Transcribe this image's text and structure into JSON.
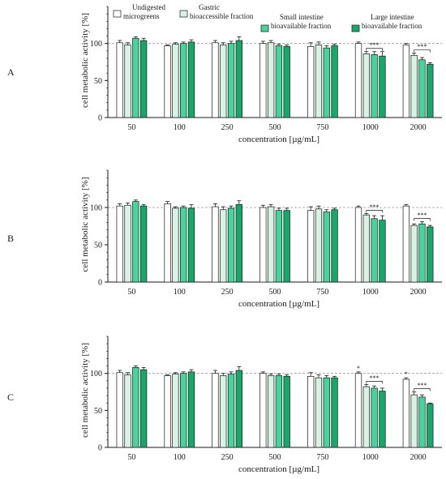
{
  "legend": [
    {
      "lines": [
        "Undigested",
        "microgreens"
      ],
      "color": "#ffffff"
    },
    {
      "lines": [
        "Gastric",
        "bioaccessible fraction"
      ],
      "color": "#d9f2e6"
    },
    {
      "lines": [
        "Small intestine",
        "bioavailable fraction"
      ],
      "color": "#45d49c"
    },
    {
      "lines": [
        "Large intestine",
        "bioavailable fraction"
      ],
      "color": "#16a76b"
    }
  ],
  "colors": {
    "undigested": "#ffffff",
    "gastric": "#d9f2e6",
    "small_intestine": "#45d49c",
    "large_intestine": "#16a76b",
    "axis": "#1a1a1a",
    "reference_line": "#9a9a9a"
  },
  "chart_data": [
    {
      "type": "bar",
      "panel": "A",
      "categories": [
        "50",
        "100",
        "250",
        "500",
        "750",
        "1000",
        "2000"
      ],
      "xlabel": "concentration [µg/mL]",
      "ylabel": "cell metabolic activity [%]",
      "ylim": [
        0,
        150
      ],
      "yticks": [
        0,
        50,
        100
      ],
      "reference_line": 100,
      "series": [
        {
          "name": "Undigested microgreens",
          "values": [
            101,
            97,
            101,
            100,
            96,
            100,
            98
          ],
          "errors": [
            3,
            1,
            3,
            3,
            5,
            2,
            2
          ]
        },
        {
          "name": "Gastric bioaccessible fraction",
          "values": [
            98,
            99,
            98,
            101,
            98,
            86,
            84
          ],
          "errors": [
            3,
            2,
            3,
            3,
            4,
            3,
            3
          ]
        },
        {
          "name": "Small intestine bioavailable fraction",
          "values": [
            107,
            100,
            100,
            97,
            94,
            85,
            78
          ],
          "errors": [
            2,
            2,
            3,
            2,
            3,
            4,
            3
          ]
        },
        {
          "name": "Large intestine bioavailable fraction",
          "values": [
            104,
            102,
            104,
            96,
            97,
            83,
            72
          ],
          "errors": [
            3,
            3,
            5,
            2,
            2,
            6,
            2
          ]
        }
      ],
      "significance": [
        {
          "category": "1000",
          "label": "***"
        },
        {
          "category": "2000",
          "label": "***"
        }
      ]
    },
    {
      "type": "bar",
      "panel": "B",
      "categories": [
        "50",
        "100",
        "250",
        "500",
        "750",
        "1000",
        "2000"
      ],
      "xlabel": "concentration [µg/mL]",
      "ylabel": "cell metabolic activity [%]",
      "ylim": [
        0,
        150
      ],
      "yticks": [
        0,
        50,
        100
      ],
      "reference_line": 100,
      "series": [
        {
          "name": "Undigested microgreens",
          "values": [
            102,
            105,
            101,
            100,
            96,
            100,
            102
          ],
          "errors": [
            3,
            3,
            4,
            3,
            5,
            2,
            2
          ]
        },
        {
          "name": "Gastric bioaccessible fraction",
          "values": [
            103,
            99,
            97,
            101,
            98,
            90,
            76
          ],
          "errors": [
            3,
            2,
            4,
            3,
            4,
            2,
            2
          ]
        },
        {
          "name": "Small intestine bioavailable fraction",
          "values": [
            108,
            100,
            99,
            96,
            94,
            85,
            78
          ],
          "errors": [
            2,
            2,
            3,
            3,
            3,
            4,
            3
          ]
        },
        {
          "name": "Large intestine bioavailable fraction",
          "values": [
            102,
            99,
            104,
            96,
            97,
            83,
            74
          ],
          "errors": [
            2,
            5,
            5,
            3,
            2,
            6,
            2
          ]
        }
      ],
      "significance": [
        {
          "category": "1000",
          "label": "***"
        },
        {
          "category": "2000",
          "label": "***"
        }
      ]
    },
    {
      "type": "bar",
      "panel": "C",
      "categories": [
        "50",
        "100",
        "250",
        "500",
        "750",
        "1000",
        "2000"
      ],
      "xlabel": "concentration [µg/mL]",
      "ylabel": "cell metabolic activity [%]",
      "ylim": [
        0,
        150
      ],
      "yticks": [
        0,
        50,
        100
      ],
      "reference_line": 100,
      "series": [
        {
          "name": "Undigested microgreens",
          "values": [
            101,
            97,
            100,
            100,
            96,
            100,
            92
          ],
          "errors": [
            3,
            1,
            4,
            2,
            5,
            2,
            2
          ]
        },
        {
          "name": "Gastric bioaccessible fraction",
          "values": [
            98,
            99,
            97,
            97,
            94,
            82,
            71
          ],
          "errors": [
            3,
            2,
            3,
            2,
            4,
            3,
            4
          ]
        },
        {
          "name": "Small intestine bioavailable fraction",
          "values": [
            108,
            100,
            99,
            97,
            94,
            80,
            68
          ],
          "errors": [
            2,
            2,
            3,
            2,
            3,
            3,
            3
          ]
        },
        {
          "name": "Large intestine bioavailable fraction",
          "values": [
            105,
            102,
            104,
            96,
            94,
            76,
            59
          ],
          "errors": [
            3,
            3,
            5,
            2,
            2,
            4,
            1
          ]
        }
      ],
      "significance": [
        {
          "category": "1000",
          "label": "***"
        },
        {
          "category": "2000",
          "label": "***"
        },
        {
          "category": "1000",
          "label": "*",
          "single": true
        },
        {
          "category": "2000",
          "label": "*",
          "single": true
        }
      ]
    }
  ]
}
